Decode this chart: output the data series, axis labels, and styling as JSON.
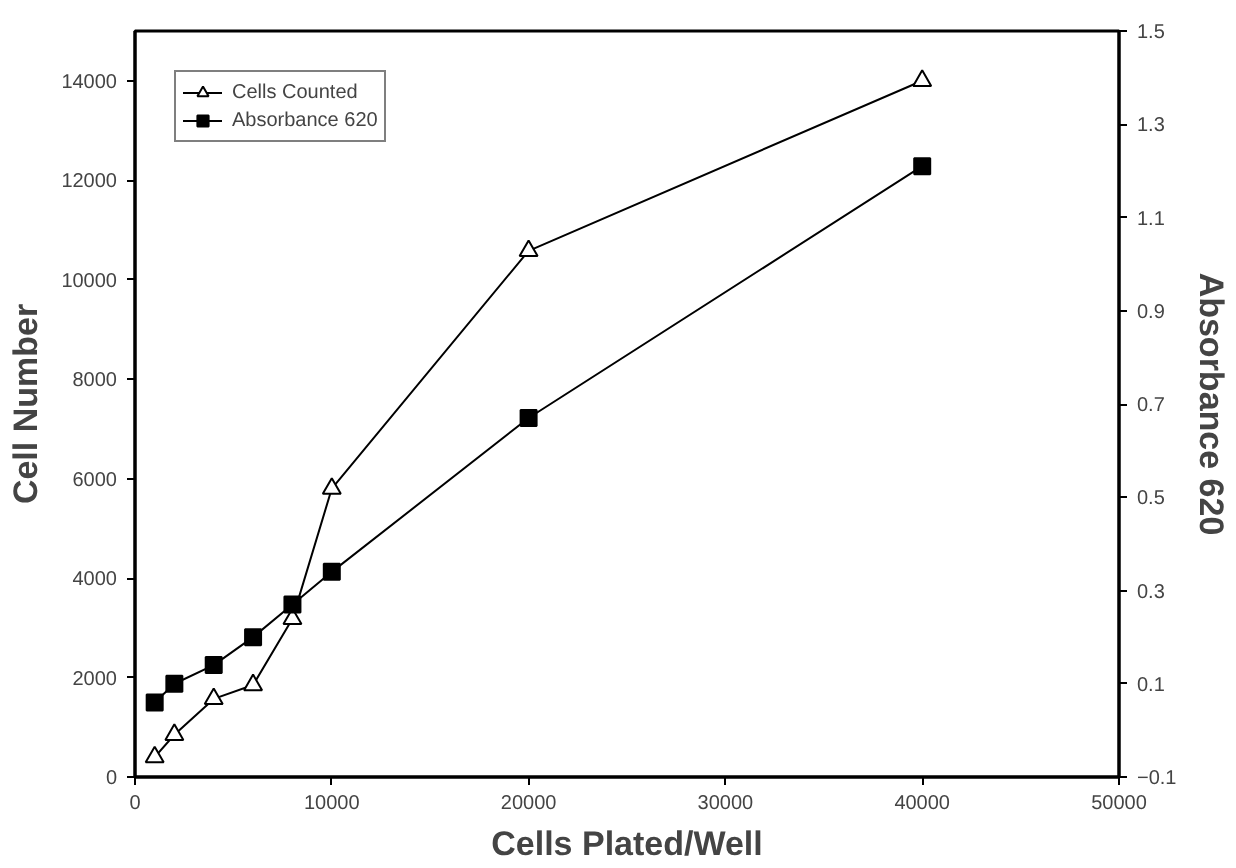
{
  "chart_data": {
    "type": "line",
    "xlabel": "Cells Plated/Well",
    "ylabel": "Cell Number",
    "y2label": "Absorbance 620",
    "x": [
      1000,
      2000,
      4000,
      6000,
      8000,
      10000,
      20000,
      40000
    ],
    "series": [
      {
        "name": "Cells Counted",
        "color": "#000000",
        "marker": "triangle",
        "values": [
          400,
          850,
          1570,
          1850,
          3180,
          5800,
          10580,
          14000
        ]
      },
      {
        "name": "Absorbance 620",
        "color": "#000000",
        "marker": "square",
        "axis": "y2",
        "values": [
          0.06,
          0.1,
          0.14,
          0.2,
          0.27,
          0.34,
          0.67,
          1.21
        ]
      }
    ],
    "xlim": [
      0,
      50000
    ],
    "xticks": [
      0,
      10000,
      20000,
      30000,
      40000,
      50000
    ],
    "ylim": [
      0,
      15000
    ],
    "yticks": [
      0,
      2000,
      4000,
      6000,
      8000,
      10000,
      12000,
      14000
    ],
    "y2lim": [
      -0.1,
      1.5
    ],
    "y2ticks": [
      -0.1,
      0.1,
      0.3,
      0.5,
      0.7,
      0.9,
      1.1,
      1.3,
      1.5
    ],
    "grid": false,
    "legend": "top left"
  }
}
